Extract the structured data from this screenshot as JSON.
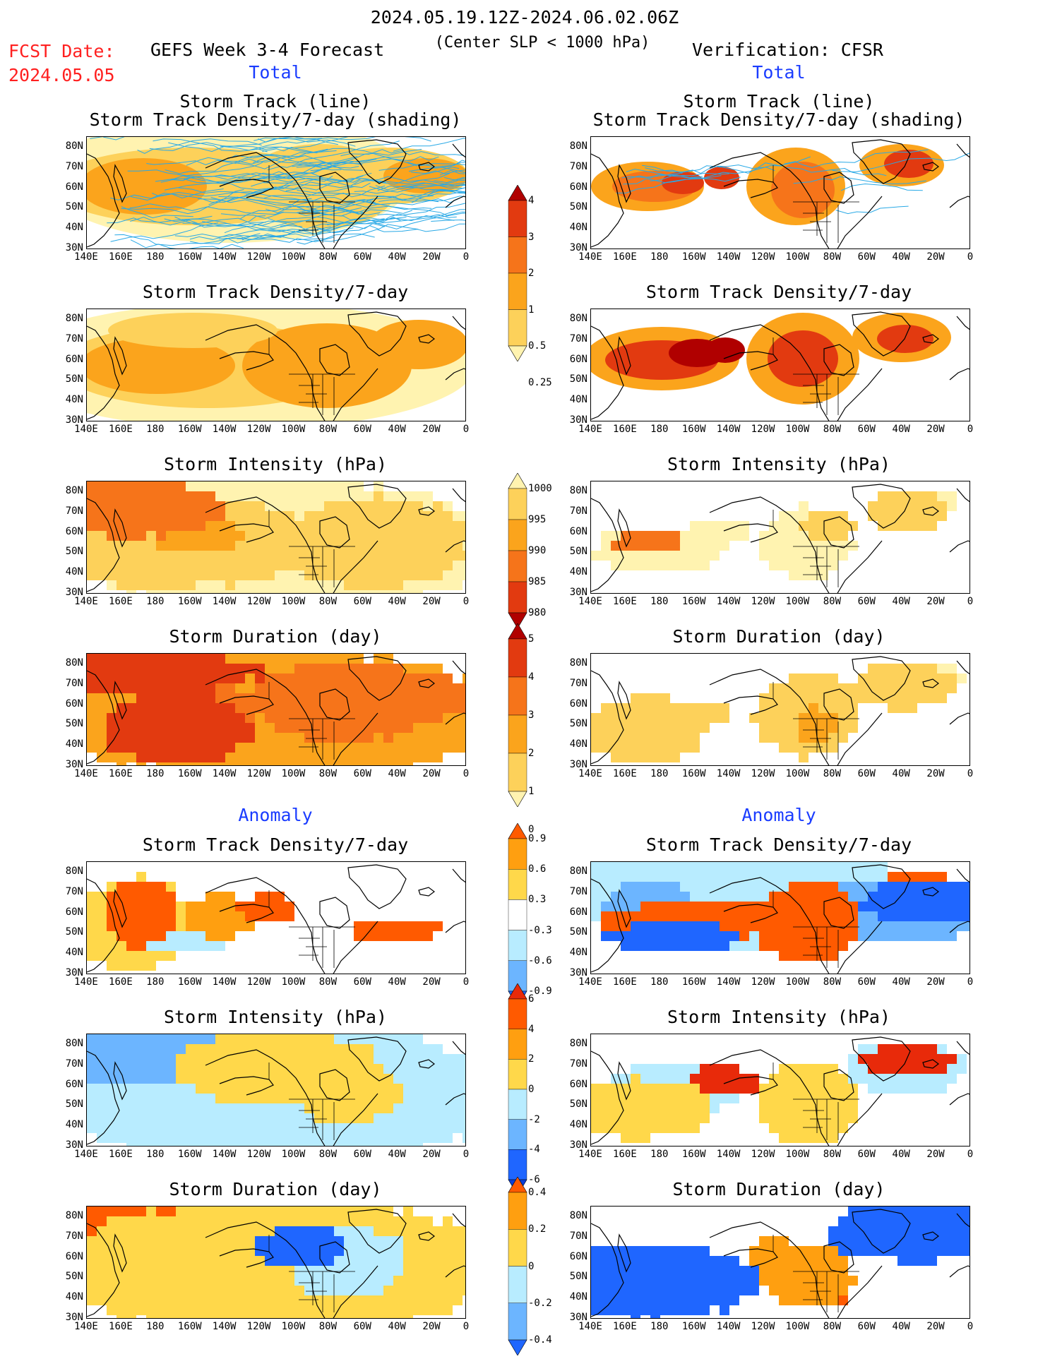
{
  "header": {
    "date_range": "2024.05.19.12Z-2024.06.02.06Z",
    "fcst_label": "FCST Date:",
    "fcst_date": "2024.05.05",
    "forecast_title": "GEFS Week 3-4 Forecast",
    "criterion": "(Center SLP < 1000 hPa)",
    "verification": "Verification: CFSR"
  },
  "sections": {
    "total_left": "Total",
    "total_right": "Total",
    "anomaly_left": "Anomaly",
    "anomaly_right": "Anomaly"
  },
  "panel_titles": {
    "track_line": "Storm Track (line)",
    "track_density_shading": "Storm Track Density/7-day (shading)",
    "track_density": "Storm Track Density/7-day",
    "intensity": "Storm Intensity (hPa)",
    "duration": "Storm Duration (day)"
  },
  "axes": {
    "lat_labels": [
      "80N",
      "70N",
      "60N",
      "50N",
      "40N",
      "30N"
    ],
    "lon_labels": [
      "140E",
      "160E",
      "180",
      "160W",
      "140W",
      "120W",
      "100W",
      "80W",
      "60W",
      "40W",
      "20W",
      "0"
    ]
  },
  "colorbars": {
    "density_total": {
      "labels": [
        "4",
        "3",
        "2",
        "1",
        "0.5",
        "0.25"
      ],
      "colors": [
        "#b00000",
        "#e23a10",
        "#f6741a",
        "#fba41c",
        "#fdd15a",
        "#fff3b0"
      ]
    },
    "intensity_total": {
      "labels": [
        "1000",
        "995",
        "990",
        "985",
        "980"
      ],
      "colors": [
        "#fff3b0",
        "#fdd15a",
        "#fba41c",
        "#f6741a",
        "#e23a10",
        "#b00000"
      ]
    },
    "duration_total": {
      "labels": [
        "5",
        "4",
        "3",
        "2",
        "1",
        "0"
      ],
      "colors": [
        "#b00000",
        "#e23a10",
        "#f6741a",
        "#fba41c",
        "#fdd15a",
        "#fff3b0"
      ]
    },
    "density_anom": {
      "labels": [
        "0.9",
        "0.6",
        "0.3",
        "-0.3",
        "-0.6",
        "-0.9"
      ],
      "colors": [
        "#ff5a00",
        "#ff9f10",
        "#ffd84a",
        "#ffffff",
        "#b8ecff",
        "#6cb5ff",
        "#1f66ff"
      ]
    },
    "intensity_anom": {
      "labels": [
        "6",
        "4",
        "2",
        "0",
        "-2",
        "-4",
        "-6"
      ],
      "colors": [
        "#e82a0a",
        "#ff5a00",
        "#ff9f10",
        "#ffd84a",
        "#b8ecff",
        "#6cb5ff",
        "#1f66ff",
        "#0a3fd9"
      ]
    },
    "duration_anom": {
      "labels": [
        "0.4",
        "0.2",
        "0",
        "-0.2",
        "-0.4"
      ],
      "colors": [
        "#ff5a00",
        "#ff9f10",
        "#ffd84a",
        "#b8ecff",
        "#6cb5ff",
        "#1f66ff"
      ]
    }
  },
  "legend_colors": {
    "track_line": "#29a9e6",
    "land_outline": "#000000"
  }
}
